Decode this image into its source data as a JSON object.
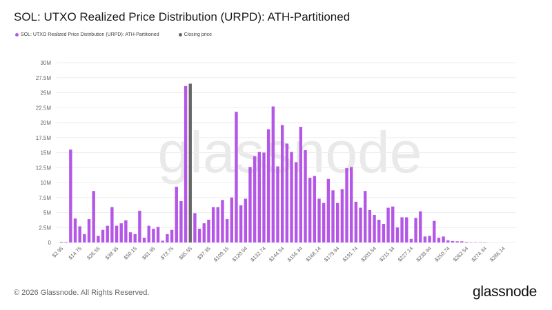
{
  "title": "SOL: UTXO Realized Price Distribution (URPD): ATH-Partitioned",
  "watermark": "glassnode",
  "footer": {
    "copyright": "© 2026 Glassnode. All Rights Reserved.",
    "logo": "glassnode"
  },
  "colors": {
    "distribution": "#b457e6",
    "closing": "#666666",
    "grid": "#eeeeee"
  },
  "chart_data": {
    "type": "bar",
    "title": "SOL: UTXO Realized Price Distribution (URPD): ATH-Partitioned",
    "xlabel": "",
    "ylabel": "",
    "ylim": [
      0,
      30000000
    ],
    "yticks": [
      "0",
      "2.5M",
      "5M",
      "7.5M",
      "10M",
      "12.5M",
      "15M",
      "17.5M",
      "20M",
      "22.5M",
      "25M",
      "27.5M",
      "30M"
    ],
    "xtick_labels": [
      "$2.95",
      "$14.75",
      "$26.55",
      "$38.35",
      "$50.15",
      "$61.95",
      "$73.75",
      "$85.55",
      "$97.35",
      "$109.15",
      "$120.94",
      "$132.74",
      "$144.54",
      "$156.34",
      "$168.14",
      "$179.94",
      "$191.74",
      "$203.54",
      "$215.34",
      "$227.14",
      "$238.94",
      "$250.74",
      "$262.54",
      "$274.34",
      "$286.14"
    ],
    "bin_start": 2.95,
    "bin_width": 2.95,
    "grid": true,
    "legend": "top-left",
    "series": [
      {
        "name": "SOL: UTXO Realized Price Distribution (URPD): ATH-Partitioned",
        "values_millions": [
          0.1,
          0.1,
          15.5,
          4.0,
          2.7,
          1.4,
          3.9,
          8.6,
          1.1,
          2.1,
          2.8,
          5.9,
          2.8,
          3.2,
          3.7,
          1.7,
          1.4,
          5.3,
          0.8,
          2.8,
          2.3,
          2.6,
          0.3,
          1.4,
          2.1,
          9.3,
          6.9,
          26.1,
          null,
          4.9,
          2.3,
          3.2,
          3.8,
          5.9,
          5.9,
          7.1,
          3.9,
          7.5,
          21.8,
          6.2,
          7.3,
          12.6,
          14.4,
          15.1,
          15.0,
          18.9,
          22.7,
          12.7,
          19.6,
          16.5,
          15.1,
          13.4,
          19.3,
          15.4,
          10.8,
          11.1,
          7.3,
          6.6,
          10.6,
          8.7,
          6.6,
          8.9,
          12.4,
          12.6,
          6.8,
          5.8,
          8.6,
          5.4,
          4.6,
          3.8,
          3.1,
          5.8,
          6.0,
          2.5,
          4.2,
          4.2,
          0.6,
          4.1,
          5.2,
          1.0,
          1.1,
          3.6,
          0.8,
          1.0,
          0.35,
          0.25,
          0.2,
          0.2,
          0.1,
          0.05,
          0.05,
          0.05,
          0.03
        ]
      },
      {
        "name": "Closing price",
        "bin": "$85.55",
        "value_millions": 26.5
      }
    ]
  }
}
